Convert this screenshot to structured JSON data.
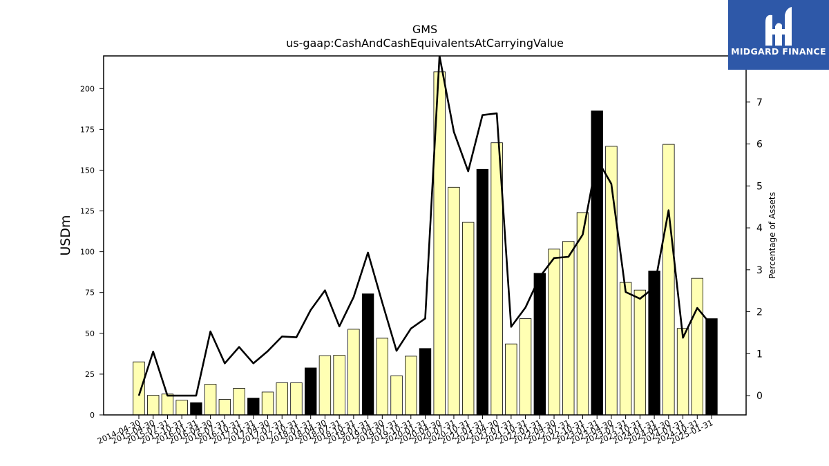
{
  "logo": {
    "text": "MIDGARD FINANCE",
    "color": "#2e58a8"
  },
  "chart_data": {
    "type": "bar",
    "title": "GMS",
    "subtitle": "us-gaap:CashAndCashEquivalentsAtCarryingValue",
    "ylabel": "USDm",
    "y2label": "Percentage of Assets",
    "ylim": [
      0,
      220
    ],
    "y2lim": [
      -0.46,
      8.1
    ],
    "yticks": [
      0,
      25,
      50,
      75,
      100,
      125,
      150,
      175,
      200
    ],
    "y2ticks": [
      0,
      1,
      2,
      3,
      4,
      5,
      6,
      7
    ],
    "grid": false,
    "legend": "none",
    "colors": {
      "bar_default": "#ffffb3",
      "bar_highlight": "#000000",
      "bar_edge": "#000000",
      "line": "#000000"
    },
    "categories": [
      "2014-04-30",
      "2015-04-30",
      "2015-07-31",
      "2015-10-31",
      "2016-01-31",
      "2016-04-30",
      "2016-07-31",
      "2016-10-31",
      "2017-01-31",
      "2017-04-30",
      "2017-07-31",
      "2017-10-31",
      "2018-01-31",
      "2018-04-30",
      "2018-07-31",
      "2018-10-31",
      "2019-01-31",
      "2019-04-30",
      "2019-07-31",
      "2019-10-31",
      "2020-01-31",
      "2020-04-30",
      "2020-07-31",
      "2020-10-31",
      "2021-01-31",
      "2021-04-30",
      "2021-07-31",
      "2021-10-31",
      "2022-01-31",
      "2022-04-30",
      "2022-07-31",
      "2022-10-31",
      "2023-01-31",
      "2023-04-30",
      "2023-07-31",
      "2023-10-31",
      "2024-01-31",
      "2024-04-30",
      "2024-07-31",
      "2024-10-31",
      "2025-01-31"
    ],
    "series": [
      {
        "type": "bar",
        "axis": "left",
        "values": [
          32.5,
          12,
          12.8,
          9,
          7.5,
          18.8,
          9.5,
          16.3,
          10.3,
          14,
          19.7,
          19.7,
          28.8,
          36.3,
          36.6,
          52.5,
          74.2,
          47,
          24,
          36,
          40.7,
          210.3,
          139.5,
          118,
          150.5,
          166.8,
          43.5,
          59,
          86.8,
          101.6,
          106.3,
          124,
          186.3,
          164.6,
          81.2,
          76.5,
          88.2,
          165.8,
          53,
          83.7,
          59
        ],
        "highlighted": [
          4,
          8,
          12,
          16,
          20,
          24,
          28,
          32,
          36,
          40
        ]
      },
      {
        "type": "line",
        "axis": "right",
        "values": [
          0,
          1.05,
          0,
          0,
          0,
          1.53,
          0.77,
          1.16,
          0.77,
          1.06,
          1.41,
          1.39,
          2.04,
          2.51,
          1.65,
          2.35,
          3.41,
          2.22,
          1.07,
          1.6,
          1.84,
          8.1,
          6.29,
          5.35,
          6.69,
          6.73,
          1.64,
          2.1,
          2.83,
          3.28,
          3.31,
          3.84,
          5.64,
          5.05,
          2.47,
          2.31,
          2.58,
          4.42,
          1.38,
          2.09,
          1.68
        ]
      }
    ]
  }
}
